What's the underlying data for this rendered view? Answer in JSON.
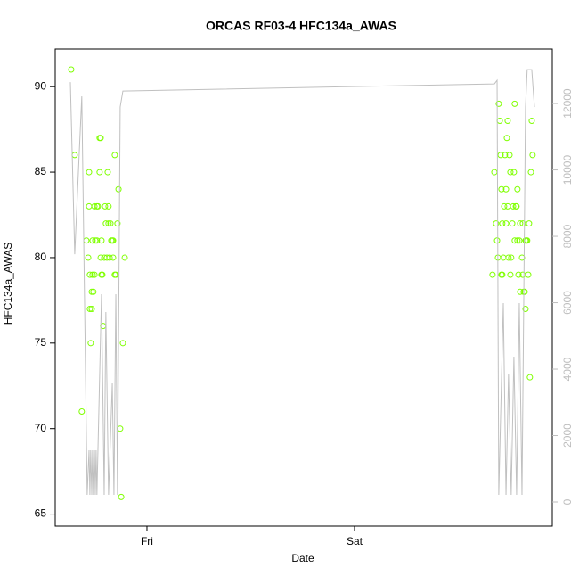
{
  "chart_data": {
    "type": "scatter",
    "title": "ORCAS RF03-4 HFC134a_AWAS",
    "xlabel": "Date",
    "ylabel": "HFC134a_AWAS",
    "xlim": [
      0.558,
      2.953
    ],
    "xticks": [
      {
        "value": 1,
        "label": "Fri"
      },
      {
        "value": 2,
        "label": "Sat"
      }
    ],
    "ylim": [
      64.3,
      92.2
    ],
    "yticks": [
      65,
      70,
      75,
      80,
      85,
      90
    ],
    "y2lim": [
      -725,
      13640
    ],
    "y2ticks": [
      0,
      2000,
      4000,
      6000,
      8000,
      10000,
      12000
    ],
    "y2color": "#bebebe",
    "series": [
      {
        "color": "#7fff00",
        "x": [
          0.635,
          0.652,
          0.686,
          0.708,
          0.717,
          0.721,
          0.721,
          0.725,
          0.725,
          0.729,
          0.734,
          0.734,
          0.738,
          0.738,
          0.742,
          0.747,
          0.747,
          0.751,
          0.759,
          0.759,
          0.764,
          0.772,
          0.777,
          0.772,
          0.777,
          0.781,
          0.781,
          0.785,
          0.789,
          0.794,
          0.798,
          0.802,
          0.807,
          0.811,
          0.815,
          0.815,
          0.82,
          0.824,
          0.828,
          0.833,
          0.837,
          0.837,
          0.845,
          0.845,
          0.85,
          0.858,
          0.863,
          0.871,
          0.876,
          0.884,
          0.893,
          2.665,
          2.674,
          2.682,
          2.687,
          2.691,
          2.695,
          2.7,
          2.704,
          2.708,
          2.708,
          2.712,
          2.712,
          2.717,
          2.721,
          2.725,
          2.73,
          2.73,
          2.734,
          2.738,
          2.738,
          2.742,
          2.747,
          2.751,
          2.751,
          2.755,
          2.76,
          2.764,
          2.768,
          2.772,
          2.772,
          2.777,
          2.781,
          2.785,
          2.785,
          2.79,
          2.794,
          2.798,
          2.798,
          2.807,
          2.811,
          2.811,
          2.815,
          2.82,
          2.824,
          2.824,
          2.828,
          2.832,
          2.837,
          2.841,
          2.845,
          2.85,
          2.854,
          2.858
        ],
        "values": [
          91,
          86,
          71,
          81,
          80,
          85,
          83,
          79,
          77,
          75,
          77,
          78,
          79,
          81,
          78,
          83,
          79,
          81,
          81,
          83,
          83,
          87,
          87,
          85,
          80,
          79,
          81,
          79,
          76,
          80,
          83,
          82,
          80,
          85,
          82,
          83,
          80,
          82,
          81,
          81,
          81,
          80,
          86,
          79,
          79,
          82,
          84,
          70,
          66,
          75,
          80,
          79,
          85,
          82,
          81,
          80,
          89,
          88,
          86,
          79,
          84,
          79,
          82,
          80,
          83,
          86,
          84,
          82,
          87,
          83,
          88,
          80,
          86,
          85,
          79,
          80,
          82,
          83,
          85,
          81,
          89,
          83,
          83,
          84,
          81,
          79,
          81,
          82,
          78,
          80,
          79,
          82,
          78,
          78,
          81,
          77,
          81,
          81,
          79,
          82,
          73,
          85,
          88,
          86
        ]
      },
      {
        "type": "line",
        "axis": "y2",
        "color": "#c0c0c0",
        "x": [
          0.631,
          0.652,
          0.686,
          0.712,
          0.721,
          0.725,
          0.729,
          0.734,
          0.738,
          0.742,
          0.747,
          0.751,
          0.755,
          0.759,
          0.781,
          0.794,
          0.802,
          0.815,
          0.833,
          0.841,
          0.85,
          0.858,
          0.871,
          0.884,
          2.674,
          2.687,
          2.695,
          2.717,
          2.73,
          2.742,
          2.755,
          2.768,
          2.781,
          2.794,
          2.807,
          2.824,
          2.832,
          2.854,
          2.867
        ],
        "values": [
          12644,
          7463,
          12215,
          215,
          1557,
          215,
          1557,
          215,
          1557,
          215,
          1557,
          215,
          1557,
          215,
          6255,
          215,
          5718,
          215,
          3570,
          215,
          6255,
          215,
          11893,
          12376,
          12591,
          12698,
          215,
          5987,
          215,
          3839,
          215,
          4376,
          215,
          5987,
          215,
          11893,
          13020,
          13020,
          11893
        ]
      }
    ]
  }
}
